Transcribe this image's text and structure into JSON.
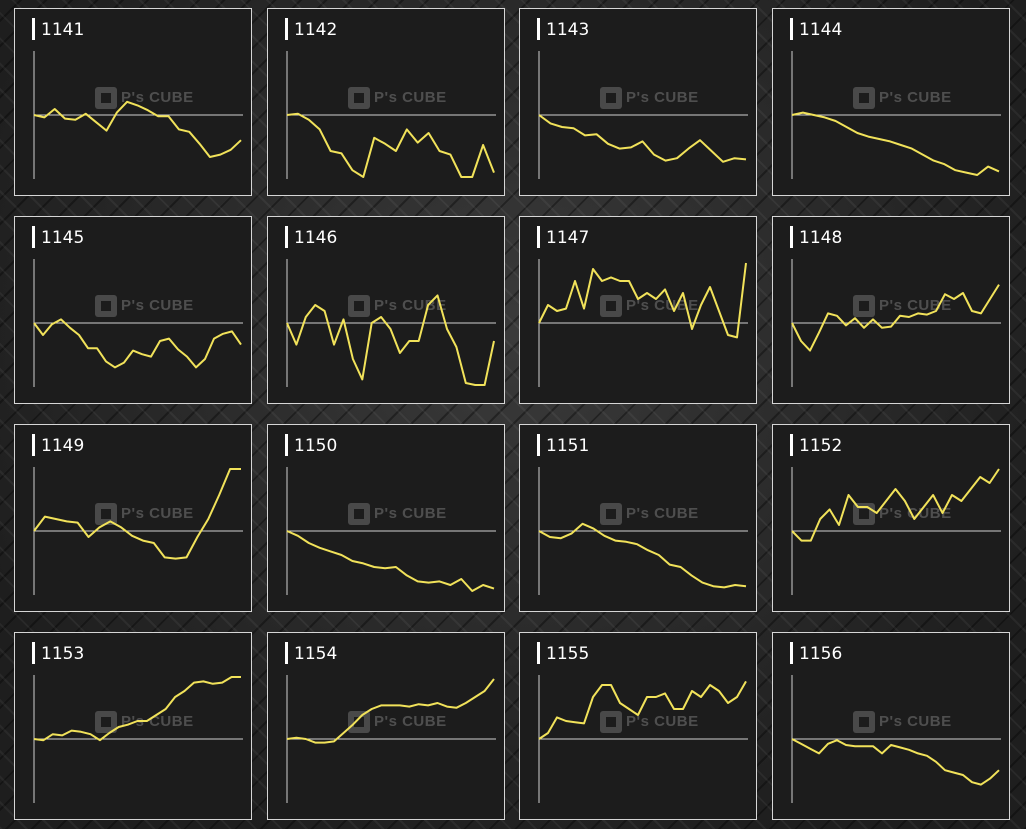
{
  "watermark": {
    "brand": "P's CUBE"
  },
  "colors": {
    "line": "#f1e25a",
    "panel_bg": "#1c1c1c",
    "axis": "#cfcfcf"
  },
  "chart_data": [
    {
      "type": "line",
      "title": "1141",
      "values": [
        0,
        -2,
        5,
        -3,
        -4,
        1,
        -6,
        -13,
        2,
        11,
        8,
        4,
        -1,
        -1,
        -12,
        -14,
        -24,
        -35,
        -33,
        -29,
        -21
      ]
    },
    {
      "type": "line",
      "title": "1142",
      "values": [
        0,
        1,
        -4,
        -12,
        -30,
        -32,
        -46,
        -55,
        -19,
        -24,
        -30,
        -12,
        -23,
        -15,
        -30,
        -33,
        -53,
        -55,
        -25,
        -48
      ]
    },
    {
      "type": "line",
      "title": "1143",
      "values": [
        0,
        -7,
        -10,
        -11,
        -17,
        -16,
        -24,
        -28,
        -27,
        -22,
        -33,
        -38,
        -36,
        -28,
        -21,
        -30,
        -39,
        -36,
        -37
      ]
    },
    {
      "type": "line",
      "title": "1144",
      "values": [
        0,
        2,
        0,
        -2,
        -5,
        -10,
        -15,
        -18,
        -20,
        -22,
        -25,
        -28,
        -33,
        -38,
        -41,
        -46,
        -48,
        -50,
        -43,
        -47
      ]
    },
    {
      "type": "line",
      "title": "1145",
      "values": [
        0,
        -10,
        -1,
        3,
        -4,
        -10,
        -21,
        -21,
        -32,
        -37,
        -33,
        -23,
        -26,
        -28,
        -15,
        -13,
        -22,
        -28,
        -37,
        -30,
        -13,
        -9,
        -7,
        -18
      ]
    },
    {
      "type": "line",
      "title": "1146",
      "values": [
        0,
        -18,
        5,
        15,
        10,
        -18,
        3,
        -30,
        -47,
        0,
        5,
        -5,
        -25,
        -15,
        -15,
        15,
        23,
        -5,
        -20,
        -50,
        -65,
        -63,
        -15
      ]
    },
    {
      "type": "line",
      "title": "1147",
      "values": [
        0,
        15,
        10,
        12,
        35,
        12,
        45,
        35,
        38,
        35,
        35,
        20,
        25,
        20,
        28,
        10,
        25,
        -5,
        15,
        30,
        10,
        -10,
        -12,
        50
      ]
    },
    {
      "type": "line",
      "title": "1148",
      "values": [
        0,
        -15,
        -23,
        -8,
        8,
        6,
        -2,
        4,
        -4,
        3,
        -4,
        -3,
        6,
        5,
        8,
        7,
        10,
        24,
        20,
        25,
        10,
        8,
        20,
        32
      ]
    },
    {
      "type": "line",
      "title": "1149",
      "values": [
        0,
        12,
        10,
        8,
        7,
        -5,
        3,
        8,
        3,
        -4,
        -8,
        -10,
        -22,
        -23,
        -22,
        -5,
        10,
        30,
        55,
        60
      ]
    },
    {
      "type": "line",
      "title": "1150",
      "values": [
        0,
        -4,
        -10,
        -14,
        -17,
        -20,
        -25,
        -27,
        -30,
        -31,
        -30,
        -37,
        -42,
        -43,
        -42,
        -45,
        -40,
        -50,
        -45,
        -48
      ]
    },
    {
      "type": "line",
      "title": "1151",
      "values": [
        0,
        -5,
        -6,
        -2,
        6,
        2,
        -4,
        -8,
        -9,
        -11,
        -16,
        -20,
        -28,
        -30,
        -37,
        -43,
        -46,
        -47,
        -45,
        -46
      ]
    },
    {
      "type": "line",
      "title": "1152",
      "values": [
        0,
        -8,
        -8,
        10,
        18,
        5,
        30,
        20,
        20,
        15,
        25,
        35,
        25,
        10,
        20,
        30,
        15,
        30,
        25,
        35,
        45,
        40,
        55
      ]
    },
    {
      "type": "line",
      "title": "1153",
      "values": [
        0,
        -1,
        4,
        3,
        7,
        6,
        4,
        -1,
        5,
        10,
        12,
        15,
        15,
        20,
        25,
        35,
        40,
        47,
        48,
        46,
        47,
        52,
        57
      ]
    },
    {
      "type": "line",
      "title": "1154",
      "values": [
        0,
        1,
        0,
        -3,
        -3,
        -2,
        5,
        12,
        20,
        25,
        28,
        28,
        28,
        27,
        29,
        28,
        30,
        27,
        26,
        30,
        35,
        40,
        50
      ]
    },
    {
      "type": "line",
      "title": "1155",
      "values": [
        0,
        5,
        18,
        15,
        14,
        13,
        35,
        45,
        45,
        30,
        25,
        20,
        35,
        35,
        38,
        25,
        25,
        40,
        35,
        45,
        40,
        30,
        35,
        48
      ]
    },
    {
      "type": "line",
      "title": "1156",
      "values": [
        0,
        -4,
        -8,
        -12,
        -4,
        -1,
        -5,
        -6,
        -6,
        -6,
        -12,
        -5,
        -7,
        -9,
        -12,
        -14,
        -19,
        -26,
        -28,
        -30,
        -36,
        -38,
        -33,
        -26
      ]
    }
  ]
}
